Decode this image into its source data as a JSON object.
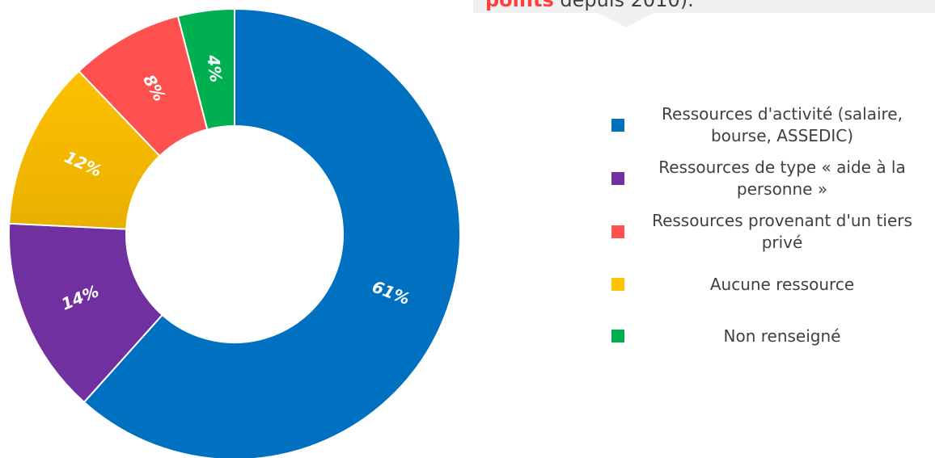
{
  "chart_data": {
    "type": "pie",
    "annotation": {
      "highlight": "points",
      "text": "depuis 2010)."
    },
    "categories": [
      "Ressources d'activité (salaire, bourse, ASSEDIC)",
      "Ressources de type « aide à la personne »",
      "Aucune ressource",
      "Ressources provenant d'un tiers privé",
      "Non renseigné"
    ],
    "values": [
      61,
      14,
      12,
      8,
      4
    ],
    "value_labels": [
      "61%",
      "14%",
      "12%",
      "8%",
      "4%"
    ],
    "colors": [
      "#0070c0",
      "#7030a0",
      "#ffc000",
      "#ff5050",
      "#00b050"
    ],
    "legend_order": [
      0,
      1,
      3,
      2,
      4
    ],
    "legend": "right"
  }
}
